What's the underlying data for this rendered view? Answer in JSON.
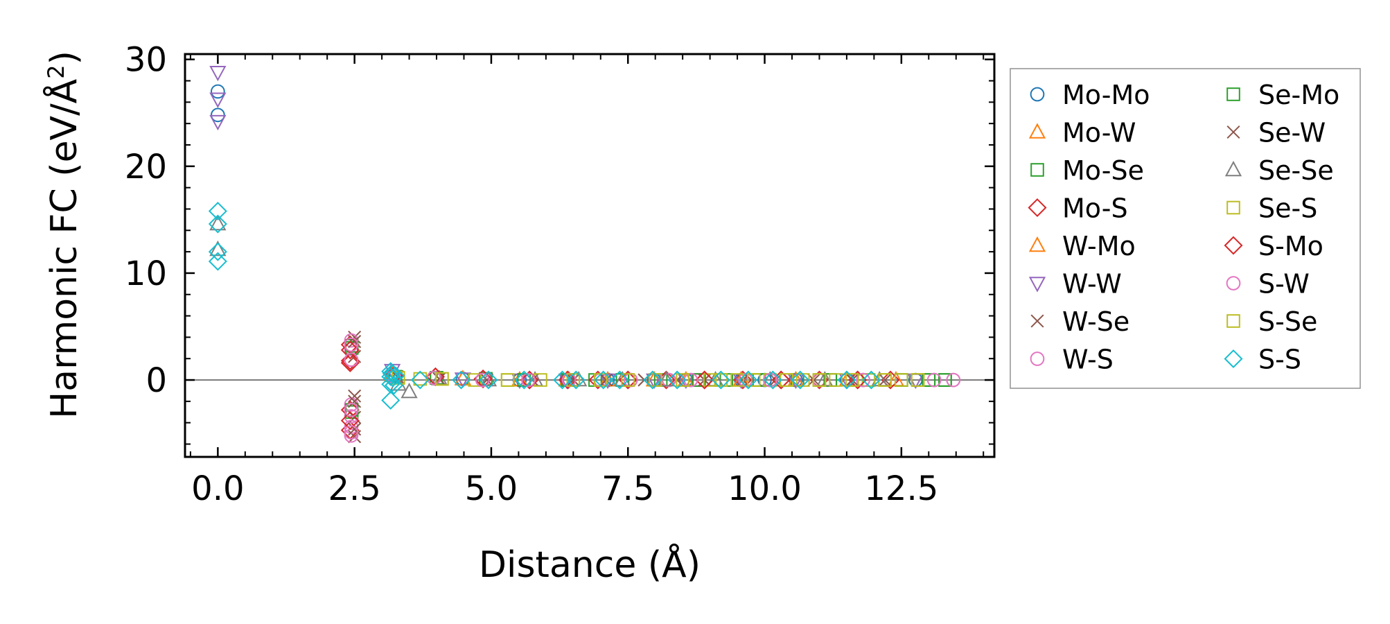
{
  "chart_data": {
    "type": "scatter",
    "title": "",
    "xlabel": "Distance (Å)",
    "ylabel_main": "Harmonic FC (eV/Å",
    "ylabel_sup": "2",
    "ylabel_close": ")",
    "xlim": [
      -0.6,
      14.2
    ],
    "ylim": [
      -7.2,
      30.5
    ],
    "xticks": [
      0.0,
      2.5,
      5.0,
      7.5,
      10.0,
      12.5
    ],
    "xtick_labels": [
      "0.0",
      "2.5",
      "5.0",
      "7.5",
      "10.0",
      "12.5"
    ],
    "yticks": [
      0,
      10,
      20,
      30
    ],
    "ytick_labels": [
      "0",
      "10",
      "20",
      "30"
    ],
    "zero_line": true,
    "legend_position": "outside-right",
    "series": [
      {
        "name": "Mo-Mo",
        "marker": "circle",
        "color": "#1f77b4",
        "filled": false,
        "x": [
          0,
          0,
          3.19,
          4.48,
          5.52,
          6.38,
          7.13,
          7.98,
          8.56,
          9.57,
          10.0,
          10.57,
          11.51,
          12.76
        ],
        "y": [
          27.0,
          24.8,
          0.6,
          0.1,
          0,
          0,
          0,
          0,
          0,
          0,
          0,
          0,
          0,
          0
        ]
      },
      {
        "name": "Mo-W",
        "marker": "triangle-up",
        "color": "#ff7f0e",
        "filled": false,
        "x": [
          3.19,
          4.48,
          5.52,
          6.38,
          7.13,
          7.98,
          8.56,
          9.57,
          10.57,
          11.51,
          12.4
        ],
        "y": [
          0.5,
          0.1,
          0,
          0,
          0,
          0,
          0,
          0,
          0,
          0,
          0
        ]
      },
      {
        "name": "Mo-Se",
        "marker": "square",
        "color": "#2ca02c",
        "filled": false,
        "x": [
          2.45,
          2.45,
          3.25,
          4.0,
          4.9,
          5.6,
          6.4,
          6.9,
          7.4,
          8.1,
          8.8,
          9.3,
          9.9,
          10.6,
          11.2,
          11.9,
          12.5,
          13.0,
          13.3
        ],
        "y": [
          3.2,
          -3.0,
          0.3,
          0.2,
          0.1,
          0,
          0,
          0,
          0,
          0,
          0,
          0,
          0,
          0,
          0,
          0,
          0,
          0,
          0
        ]
      },
      {
        "name": "Mo-S",
        "marker": "diamond",
        "color": "#d62728",
        "filled": false,
        "x": [
          2.42,
          2.42,
          2.42,
          2.42,
          3.22,
          3.98,
          4.85,
          5.7,
          6.4,
          6.95,
          7.5,
          8.2,
          8.9,
          9.6,
          10.3,
          11.0,
          11.7,
          12.3
        ],
        "y": [
          3.3,
          1.6,
          -2.8,
          -4.7,
          0.4,
          0.3,
          0.1,
          0,
          0,
          0,
          0,
          0,
          0,
          0,
          0,
          0,
          0,
          0
        ]
      },
      {
        "name": "W-Mo",
        "marker": "triangle-up",
        "color": "#ff7f0e",
        "filled": false,
        "x": [
          3.19,
          4.48,
          5.52,
          6.38,
          7.13,
          7.98,
          8.56,
          9.57,
          10.57,
          11.51
        ],
        "y": [
          0.4,
          0.1,
          0,
          0,
          0,
          0,
          0,
          0,
          0,
          0
        ]
      },
      {
        "name": "W-W",
        "marker": "triangle-down",
        "color": "#9467bd",
        "filled": false,
        "x": [
          0,
          0,
          0,
          3.19,
          4.48,
          5.52,
          6.38,
          7.13,
          7.98,
          8.56,
          9.57,
          10.57,
          11.51,
          12.76
        ],
        "y": [
          28.8,
          26.3,
          24.2,
          0.9,
          0.1,
          0,
          0,
          0,
          0,
          0,
          0,
          0,
          0,
          0
        ]
      },
      {
        "name": "W-Se",
        "marker": "x",
        "color": "#8c564b",
        "filled": false,
        "x": [
          2.5,
          2.5,
          2.5,
          2.5,
          2.5,
          3.28,
          4.05,
          4.92,
          5.75,
          6.5,
          7.1,
          7.8,
          8.4,
          8.9,
          9.6,
          10.2,
          10.9,
          11.6,
          12.2
        ],
        "y": [
          4.0,
          2.2,
          -1.5,
          -3.5,
          -5.3,
          0.3,
          0.1,
          0,
          0,
          0,
          0,
          0,
          0,
          0,
          0,
          0,
          0,
          0,
          0
        ]
      },
      {
        "name": "W-S",
        "marker": "circle",
        "color": "#e377c2",
        "filled": false,
        "x": [
          2.44,
          2.44,
          2.44,
          2.44,
          2.44,
          2.44,
          3.22,
          3.95,
          4.84,
          5.68,
          6.42,
          7.0,
          7.55,
          8.25,
          8.65,
          9.65,
          10.1,
          11.0,
          11.8,
          13.1,
          13.45
        ],
        "y": [
          3.7,
          2.9,
          -2.3,
          -3.4,
          -4.4,
          -5.2,
          0.3,
          0.2,
          0,
          0,
          0,
          0,
          0,
          0,
          0,
          0,
          0,
          0,
          0,
          0,
          0
        ]
      },
      {
        "name": "Se-Mo",
        "marker": "square",
        "color": "#2ca02c",
        "filled": false,
        "x": [
          2.45,
          2.45,
          3.25,
          4.0,
          4.9,
          5.6,
          6.4,
          7.4,
          8.8,
          9.9,
          11.2,
          12.5,
          13.0,
          13.3
        ],
        "y": [
          3.0,
          -2.8,
          0.3,
          0.2,
          0.1,
          0,
          0,
          0,
          0,
          0,
          0,
          0,
          0,
          0
        ]
      },
      {
        "name": "Se-W",
        "marker": "x",
        "color": "#8c564b",
        "filled": false,
        "x": [
          2.5,
          2.5,
          2.5,
          3.28,
          4.05,
          4.92,
          5.75,
          6.5,
          7.8,
          8.9,
          10.2,
          11.6
        ],
        "y": [
          3.6,
          -2.0,
          -4.6,
          0.3,
          0.1,
          0,
          0,
          0,
          0,
          0,
          0,
          0
        ]
      },
      {
        "name": "Se-Se",
        "marker": "triangle-up",
        "color": "#7f7f7f",
        "filled": false,
        "x": [
          0,
          0,
          3.3,
          3.5,
          4.05,
          4.95,
          5.8,
          6.6,
          7.4,
          8.2,
          9.1,
          10.1,
          11.1,
          12.1
        ],
        "y": [
          14.6,
          12.2,
          -0.4,
          -1.1,
          0.1,
          0,
          0,
          0,
          0,
          0,
          0,
          0,
          0,
          0
        ]
      },
      {
        "name": "Se-S",
        "marker": "square",
        "color": "#bcbd22",
        "filled": false,
        "x": [
          3.3,
          3.7,
          4.1,
          4.7,
          5.3,
          5.9,
          6.5,
          7.0,
          7.5,
          8.0,
          8.5,
          9.0,
          9.2,
          9.5,
          9.8,
          10.1,
          10.4,
          10.7,
          11.0,
          11.3,
          11.6,
          11.9,
          12.2,
          12.5,
          12.8
        ],
        "y": [
          0.2,
          0.1,
          0.1,
          0,
          0,
          0,
          0,
          0,
          0,
          0,
          0,
          0,
          0,
          0,
          0,
          0,
          0,
          0,
          0,
          0,
          0,
          0,
          0,
          0,
          0
        ]
      },
      {
        "name": "S-Mo",
        "marker": "diamond",
        "color": "#d62728",
        "filled": false,
        "x": [
          2.42,
          2.42,
          2.42,
          3.22,
          3.98,
          4.85,
          5.7,
          6.4,
          7.5,
          8.9,
          10.3,
          11.7
        ],
        "y": [
          2.8,
          1.8,
          -3.8,
          0.4,
          0.3,
          0.1,
          0,
          0,
          0,
          0,
          0,
          0
        ]
      },
      {
        "name": "S-W",
        "marker": "circle",
        "color": "#e377c2",
        "filled": false,
        "x": [
          2.44,
          2.44,
          2.44,
          2.44,
          3.22,
          3.95,
          4.84,
          5.68,
          6.42,
          7.55,
          8.65,
          10.1,
          11.8,
          13.1,
          13.45
        ],
        "y": [
          3.3,
          1.9,
          -2.8,
          -4.9,
          0.3,
          0.2,
          0,
          0,
          0,
          0,
          0,
          0,
          0,
          0,
          0
        ]
      },
      {
        "name": "S-Se",
        "marker": "square",
        "color": "#bcbd22",
        "filled": false,
        "x": [
          3.3,
          4.1,
          5.3,
          6.5,
          7.5,
          8.5,
          9.2,
          9.8,
          10.4,
          11.0,
          11.6,
          12.2,
          12.8
        ],
        "y": [
          0.2,
          0.1,
          0,
          0,
          0,
          0,
          0,
          0,
          0,
          0,
          0,
          0,
          0
        ]
      },
      {
        "name": "S-S",
        "marker": "diamond",
        "color": "#17becf",
        "filled": false,
        "x": [
          0,
          0,
          0,
          0,
          3.16,
          3.16,
          3.16,
          3.16,
          3.18,
          3.2,
          3.22,
          3.25,
          3.7,
          4.45,
          4.95,
          5.6,
          6.3,
          6.55,
          7.05,
          7.35,
          7.95,
          8.4,
          9.2,
          9.7,
          10.15,
          10.65,
          11.5,
          11.95
        ],
        "y": [
          15.8,
          14.6,
          12.0,
          11.1,
          0.8,
          0.3,
          -0.4,
          -1.9,
          0.6,
          0.2,
          -0.5,
          0.4,
          0,
          0,
          0,
          0,
          0,
          0,
          0,
          0,
          0,
          0,
          0,
          0,
          0,
          0,
          0,
          0
        ]
      }
    ]
  }
}
